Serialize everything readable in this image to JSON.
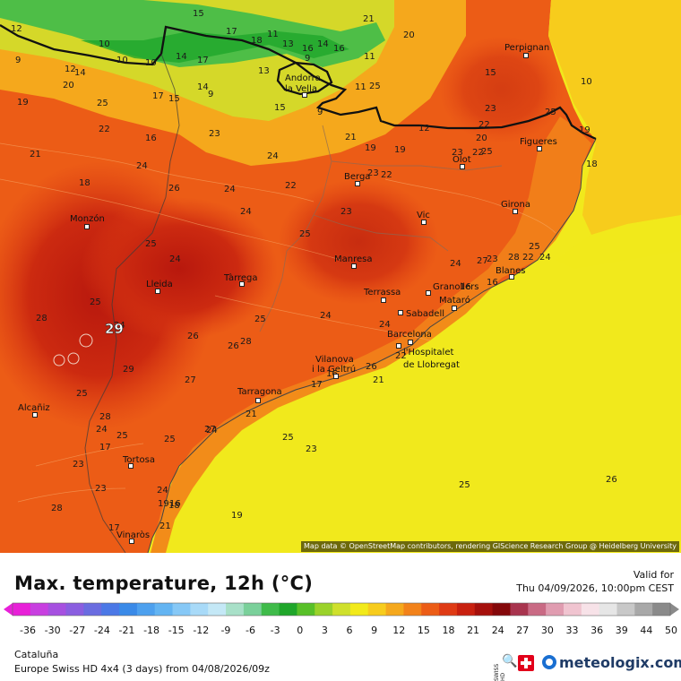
{
  "title": "Max. temperature, 12h (°C)",
  "valid_label": "Valid for",
  "valid_time": "Thu 04/09/2026, 10:00pm CEST",
  "region": "Cataluña",
  "model_line": "Europe Swiss HD 4x4 (3 days) from 04/08/2026/09z",
  "brand": "meteologix.com",
  "swiss_hd": "SWISS HD",
  "attribution": "Map data © OpenStreetMap contributors, rendering GIScience Research Group @ Heidelberg University",
  "legend": {
    "ticks": [
      "-36",
      "-30",
      "-27",
      "-24",
      "-21",
      "-18",
      "-15",
      "-12",
      "-9",
      "-6",
      "-3",
      "0",
      "3",
      "6",
      "9",
      "12",
      "15",
      "18",
      "21",
      "24",
      "27",
      "30",
      "33",
      "36",
      "39",
      "44",
      "50"
    ],
    "colors": [
      "#e820d8",
      "#c83fe0",
      "#a650e0",
      "#8a5ee0",
      "#6a6ce0",
      "#4b78e6",
      "#3a8ae8",
      "#4da0ee",
      "#63b4f2",
      "#86c8f6",
      "#a8daf8",
      "#c4e8f6",
      "#a8e0c8",
      "#7ad09a",
      "#3fbb4a",
      "#1fa62a",
      "#58c028",
      "#9ad22a",
      "#cfe02c",
      "#f2ea1a",
      "#f7cc1c",
      "#f5a81c",
      "#f2821a",
      "#ec5c16",
      "#df3a14",
      "#c8200f",
      "#a5100c",
      "#84080a",
      "#a8344e",
      "#c96a84",
      "#e09cb0",
      "#f0c4d0",
      "#f7e2e8",
      "#e6e6e6",
      "#c8c8c8",
      "#a8a8a8",
      "#8a8a8a"
    ]
  },
  "cities": [
    {
      "name": "Perpignan"
    },
    {
      "name": "Andorra"
    },
    {
      "name": "la Vella"
    },
    {
      "name": "Figueres"
    },
    {
      "name": "Olot"
    },
    {
      "name": "Berga"
    },
    {
      "name": "Girona"
    },
    {
      "name": "Vic"
    },
    {
      "name": "Monzón"
    },
    {
      "name": "Manresa"
    },
    {
      "name": "Blanes"
    },
    {
      "name": "Lleida"
    },
    {
      "name": "Tàrrega"
    },
    {
      "name": "Terrassa"
    },
    {
      "name": "Granollers"
    },
    {
      "name": "Mataró"
    },
    {
      "name": "Sabadell"
    },
    {
      "name": "Barcelona"
    },
    {
      "name": "l'Hospitalet"
    },
    {
      "name": "de Llobregat"
    },
    {
      "name": "Vilanova"
    },
    {
      "name": "i la Geltrú"
    },
    {
      "name": "Tarragona"
    },
    {
      "name": "Alcañiz"
    },
    {
      "name": "Tortosa"
    },
    {
      "name": "Vinaròs"
    }
  ],
  "labels": [
    "15",
    "21",
    "20",
    "12",
    "10",
    "17",
    "18",
    "11",
    "13",
    "16",
    "14",
    "16",
    "9",
    "10",
    "10",
    "12",
    "14",
    "11",
    "13",
    "14",
    "20",
    "14",
    "9",
    "17",
    "9",
    "17",
    "15",
    "25",
    "11",
    "9",
    "10",
    "19",
    "15",
    "19",
    "25",
    "15",
    "21",
    "23",
    "12",
    "19",
    "23",
    "25",
    "22",
    "16",
    "21",
    "20",
    "19",
    "24",
    "23",
    "23",
    "22",
    "22",
    "25",
    "22",
    "24",
    "18",
    "18",
    "26",
    "24",
    "22",
    "24",
    "23",
    "25",
    "25",
    "24",
    "27",
    "24",
    "28",
    "22",
    "24",
    "25",
    "23",
    "25",
    "24",
    "28",
    "26",
    "29",
    "28",
    "26",
    "25",
    "24",
    "24",
    "22",
    "21",
    "17",
    "16",
    "26",
    "25",
    "28",
    "27",
    "24",
    "25",
    "25",
    "21",
    "24",
    "23",
    "23",
    "17",
    "19",
    "18",
    "21",
    "17",
    "28",
    "27",
    "25",
    "23",
    "25",
    "26",
    "19",
    "16",
    "16",
    "24",
    "16",
    "21",
    "22",
    "23",
    "21",
    "21",
    "18",
    "24",
    "16",
    "16"
  ]
}
